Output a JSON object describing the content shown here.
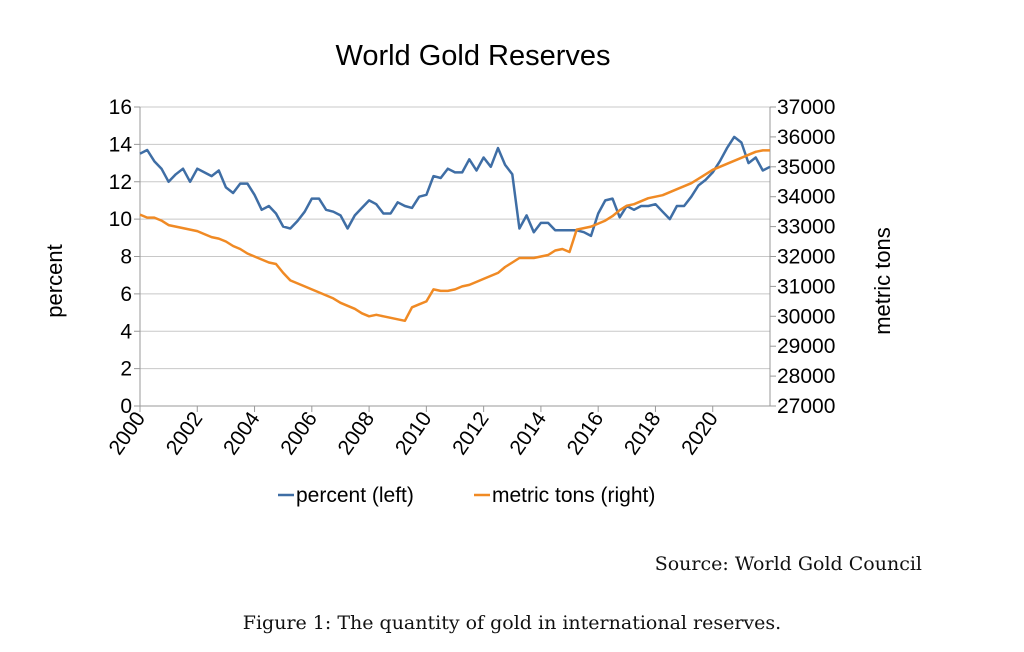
{
  "chart_data": {
    "type": "line",
    "title": "World Gold Reserves",
    "ylabel": "percent",
    "y2label": "metric tons",
    "ylim": [
      0,
      16
    ],
    "y2lim": [
      27000,
      37000
    ],
    "yticks": [
      "0",
      "2",
      "4",
      "6",
      "8",
      "10",
      "12",
      "14",
      "16"
    ],
    "y2ticks": [
      "27000",
      "28000",
      "29000",
      "30000",
      "31000",
      "32000",
      "33000",
      "34000",
      "35000",
      "36000",
      "37000"
    ],
    "xlim": [
      2000,
      2022
    ],
    "xticks": [
      "2000",
      "2002",
      "2004",
      "2006",
      "2008",
      "2010",
      "2012",
      "2014",
      "2016",
      "2018",
      "2020"
    ],
    "grid": true,
    "legend_position": "bottom",
    "series": [
      {
        "name": "percent (left)",
        "axis": "left",
        "color": "#3f6ea5",
        "points": [
          [
            2000.0,
            13.5
          ],
          [
            2000.25,
            13.7
          ],
          [
            2000.5,
            13.1
          ],
          [
            2000.75,
            12.7
          ],
          [
            2001.0,
            12.0
          ],
          [
            2001.25,
            12.4
          ],
          [
            2001.5,
            12.7
          ],
          [
            2001.75,
            12.0
          ],
          [
            2002.0,
            12.7
          ],
          [
            2002.25,
            12.5
          ],
          [
            2002.5,
            12.3
          ],
          [
            2002.75,
            12.6
          ],
          [
            2003.0,
            11.7
          ],
          [
            2003.25,
            11.4
          ],
          [
            2003.5,
            11.9
          ],
          [
            2003.75,
            11.9
          ],
          [
            2004.0,
            11.3
          ],
          [
            2004.25,
            10.5
          ],
          [
            2004.5,
            10.7
          ],
          [
            2004.75,
            10.3
          ],
          [
            2005.0,
            9.6
          ],
          [
            2005.25,
            9.5
          ],
          [
            2005.5,
            9.9
          ],
          [
            2005.75,
            10.4
          ],
          [
            2006.0,
            11.1
          ],
          [
            2006.25,
            11.1
          ],
          [
            2006.5,
            10.5
          ],
          [
            2006.75,
            10.4
          ],
          [
            2007.0,
            10.2
          ],
          [
            2007.25,
            9.5
          ],
          [
            2007.5,
            10.2
          ],
          [
            2007.75,
            10.6
          ],
          [
            2008.0,
            11.0
          ],
          [
            2008.25,
            10.8
          ],
          [
            2008.5,
            10.3
          ],
          [
            2008.75,
            10.3
          ],
          [
            2009.0,
            10.9
          ],
          [
            2009.25,
            10.7
          ],
          [
            2009.5,
            10.6
          ],
          [
            2009.75,
            11.2
          ],
          [
            2010.0,
            11.3
          ],
          [
            2010.25,
            12.3
          ],
          [
            2010.5,
            12.2
          ],
          [
            2010.75,
            12.7
          ],
          [
            2011.0,
            12.5
          ],
          [
            2011.25,
            12.5
          ],
          [
            2011.5,
            13.2
          ],
          [
            2011.75,
            12.6
          ],
          [
            2012.0,
            13.3
          ],
          [
            2012.25,
            12.8
          ],
          [
            2012.5,
            13.8
          ],
          [
            2012.75,
            12.9
          ],
          [
            2013.0,
            12.4
          ],
          [
            2013.25,
            9.5
          ],
          [
            2013.5,
            10.2
          ],
          [
            2013.75,
            9.3
          ],
          [
            2014.0,
            9.8
          ],
          [
            2014.25,
            9.8
          ],
          [
            2014.5,
            9.4
          ],
          [
            2014.75,
            9.4
          ],
          [
            2015.0,
            9.4
          ],
          [
            2015.25,
            9.4
          ],
          [
            2015.5,
            9.3
          ],
          [
            2015.75,
            9.1
          ],
          [
            2016.0,
            10.3
          ],
          [
            2016.25,
            11.0
          ],
          [
            2016.5,
            11.1
          ],
          [
            2016.75,
            10.1
          ],
          [
            2017.0,
            10.7
          ],
          [
            2017.25,
            10.5
          ],
          [
            2017.5,
            10.7
          ],
          [
            2017.75,
            10.7
          ],
          [
            2018.0,
            10.8
          ],
          [
            2018.25,
            10.4
          ],
          [
            2018.5,
            10.0
          ],
          [
            2018.75,
            10.7
          ],
          [
            2019.0,
            10.7
          ],
          [
            2019.25,
            11.2
          ],
          [
            2019.5,
            11.8
          ],
          [
            2019.75,
            12.1
          ],
          [
            2020.0,
            12.5
          ],
          [
            2020.25,
            13.1
          ],
          [
            2020.5,
            13.8
          ],
          [
            2020.75,
            14.4
          ],
          [
            2021.0,
            14.1
          ],
          [
            2021.25,
            13.0
          ],
          [
            2021.5,
            13.3
          ],
          [
            2021.75,
            12.6
          ],
          [
            2022.0,
            12.8
          ]
        ]
      },
      {
        "name": "metric tons (right)",
        "axis": "right",
        "color": "#f08a24",
        "points": [
          [
            2000.0,
            33400
          ],
          [
            2000.25,
            33300
          ],
          [
            2000.5,
            33300
          ],
          [
            2000.75,
            33200
          ],
          [
            2001.0,
            33050
          ],
          [
            2001.25,
            33000
          ],
          [
            2001.5,
            32950
          ],
          [
            2001.75,
            32900
          ],
          [
            2002.0,
            32850
          ],
          [
            2002.25,
            32750
          ],
          [
            2002.5,
            32650
          ],
          [
            2002.75,
            32600
          ],
          [
            2003.0,
            32500
          ],
          [
            2003.25,
            32350
          ],
          [
            2003.5,
            32250
          ],
          [
            2003.75,
            32100
          ],
          [
            2004.0,
            32000
          ],
          [
            2004.25,
            31900
          ],
          [
            2004.5,
            31800
          ],
          [
            2004.75,
            31750
          ],
          [
            2005.0,
            31450
          ],
          [
            2005.25,
            31200
          ],
          [
            2005.5,
            31100
          ],
          [
            2005.75,
            31000
          ],
          [
            2006.0,
            30900
          ],
          [
            2006.25,
            30800
          ],
          [
            2006.5,
            30700
          ],
          [
            2006.75,
            30600
          ],
          [
            2007.0,
            30450
          ],
          [
            2007.25,
            30350
          ],
          [
            2007.5,
            30250
          ],
          [
            2007.75,
            30100
          ],
          [
            2008.0,
            30000
          ],
          [
            2008.25,
            30050
          ],
          [
            2008.5,
            30000
          ],
          [
            2008.75,
            29950
          ],
          [
            2009.0,
            29900
          ],
          [
            2009.25,
            29850
          ],
          [
            2009.5,
            30300
          ],
          [
            2009.75,
            30400
          ],
          [
            2010.0,
            30500
          ],
          [
            2010.25,
            30900
          ],
          [
            2010.5,
            30850
          ],
          [
            2010.75,
            30850
          ],
          [
            2011.0,
            30900
          ],
          [
            2011.25,
            31000
          ],
          [
            2011.5,
            31050
          ],
          [
            2011.75,
            31150
          ],
          [
            2012.0,
            31250
          ],
          [
            2012.25,
            31350
          ],
          [
            2012.5,
            31450
          ],
          [
            2012.75,
            31650
          ],
          [
            2013.0,
            31800
          ],
          [
            2013.25,
            31950
          ],
          [
            2013.5,
            31950
          ],
          [
            2013.75,
            31950
          ],
          [
            2014.0,
            32000
          ],
          [
            2014.25,
            32050
          ],
          [
            2014.5,
            32200
          ],
          [
            2014.75,
            32250
          ],
          [
            2015.0,
            32150
          ],
          [
            2015.25,
            32900
          ],
          [
            2015.5,
            32950
          ],
          [
            2015.75,
            33000
          ],
          [
            2016.0,
            33100
          ],
          [
            2016.25,
            33200
          ],
          [
            2016.5,
            33350
          ],
          [
            2016.75,
            33550
          ],
          [
            2017.0,
            33700
          ],
          [
            2017.25,
            33750
          ],
          [
            2017.5,
            33850
          ],
          [
            2017.75,
            33950
          ],
          [
            2018.0,
            34000
          ],
          [
            2018.25,
            34050
          ],
          [
            2018.5,
            34150
          ],
          [
            2018.75,
            34250
          ],
          [
            2019.0,
            34350
          ],
          [
            2019.25,
            34450
          ],
          [
            2019.5,
            34600
          ],
          [
            2019.75,
            34750
          ],
          [
            2020.0,
            34900
          ],
          [
            2020.25,
            35000
          ],
          [
            2020.5,
            35100
          ],
          [
            2020.75,
            35200
          ],
          [
            2021.0,
            35300
          ],
          [
            2021.25,
            35400
          ],
          [
            2021.5,
            35500
          ],
          [
            2021.75,
            35550
          ],
          [
            2022.0,
            35550
          ]
        ]
      }
    ]
  },
  "source_text": "Source: World Gold Council",
  "figure_caption": "Figure 1: The quantity of gold in international reserves."
}
